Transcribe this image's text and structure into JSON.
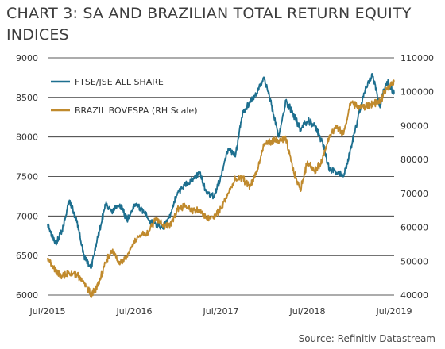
{
  "title_lines": [
    "CHART 3: SA AND BRAZILIAN TOTAL RETURN EQUITY",
    "INDICES"
  ],
  "source": "Source: Refinitiv Datastream",
  "chart_data": {
    "type": "line",
    "x_ticks": [
      "Jul/2015",
      "Jul/2016",
      "Jul/2017",
      "Jul/2018",
      "Jul/2019"
    ],
    "x_range": [
      "2015-07",
      "2019-07"
    ],
    "y_left": {
      "ticks": [
        6000,
        6500,
        7000,
        7500,
        8000,
        8500,
        9000
      ],
      "range": [
        6000,
        9000
      ]
    },
    "y_right": {
      "ticks": [
        40000,
        50000,
        60000,
        70000,
        80000,
        90000,
        100000,
        110000
      ],
      "range": [
        40000,
        110000
      ]
    },
    "grid": "horizontal",
    "legend_position": "top-left",
    "series": [
      {
        "name": "FTSE/JSE ALL SHARE",
        "axis": "left",
        "color": "#1d6f8f",
        "points": [
          [
            "2015-07",
            6900
          ],
          [
            "2015-08",
            6650
          ],
          [
            "2015-09",
            6800
          ],
          [
            "2015-10",
            7200
          ],
          [
            "2015-11",
            6950
          ],
          [
            "2015-12",
            6500
          ],
          [
            "2016-01",
            6350
          ],
          [
            "2016-02",
            6750
          ],
          [
            "2016-03",
            7150
          ],
          [
            "2016-04",
            7050
          ],
          [
            "2016-05",
            7150
          ],
          [
            "2016-06",
            6950
          ],
          [
            "2016-07",
            7150
          ],
          [
            "2016-08",
            7100
          ],
          [
            "2016-09",
            6950
          ],
          [
            "2016-10",
            6900
          ],
          [
            "2016-11",
            6850
          ],
          [
            "2016-12",
            7000
          ],
          [
            "2017-01",
            7300
          ],
          [
            "2017-02",
            7400
          ],
          [
            "2017-03",
            7450
          ],
          [
            "2017-04",
            7550
          ],
          [
            "2017-05",
            7300
          ],
          [
            "2017-06",
            7250
          ],
          [
            "2017-07",
            7500
          ],
          [
            "2017-08",
            7850
          ],
          [
            "2017-09",
            7750
          ],
          [
            "2017-10",
            8300
          ],
          [
            "2017-11",
            8450
          ],
          [
            "2017-12",
            8550
          ],
          [
            "2018-01",
            8750
          ],
          [
            "2018-02",
            8400
          ],
          [
            "2018-03",
            8000
          ],
          [
            "2018-04",
            8450
          ],
          [
            "2018-05",
            8300
          ],
          [
            "2018-06",
            8100
          ],
          [
            "2018-07",
            8200
          ],
          [
            "2018-08",
            8150
          ],
          [
            "2018-09",
            7950
          ],
          [
            "2018-10",
            7600
          ],
          [
            "2018-11",
            7550
          ],
          [
            "2018-12",
            7500
          ],
          [
            "2019-01",
            7850
          ],
          [
            "2019-02",
            8250
          ],
          [
            "2019-03",
            8600
          ],
          [
            "2019-04",
            8800
          ],
          [
            "2019-05",
            8400
          ],
          [
            "2019-06",
            8700
          ],
          [
            "2019-07",
            8550
          ]
        ]
      },
      {
        "name": "BRAZIL BOVESPA (RH Scale)",
        "axis": "right",
        "color": "#c08a2d",
        "points": [
          [
            "2015-07",
            51000
          ],
          [
            "2015-08",
            47500
          ],
          [
            "2015-09",
            45500
          ],
          [
            "2015-10",
            46500
          ],
          [
            "2015-11",
            46000
          ],
          [
            "2015-12",
            44000
          ],
          [
            "2016-01",
            40000
          ],
          [
            "2016-02",
            43000
          ],
          [
            "2016-03",
            49500
          ],
          [
            "2016-04",
            53500
          ],
          [
            "2016-05",
            49000
          ],
          [
            "2016-06",
            51500
          ],
          [
            "2016-07",
            56000
          ],
          [
            "2016-08",
            58000
          ],
          [
            "2016-09",
            58500
          ],
          [
            "2016-10",
            63000
          ],
          [
            "2016-11",
            60500
          ],
          [
            "2016-12",
            60500
          ],
          [
            "2017-01",
            65500
          ],
          [
            "2017-02",
            66500
          ],
          [
            "2017-03",
            65000
          ],
          [
            "2017-04",
            65000
          ],
          [
            "2017-05",
            62500
          ],
          [
            "2017-06",
            63000
          ],
          [
            "2017-07",
            65500
          ],
          [
            "2017-08",
            70000
          ],
          [
            "2017-09",
            74000
          ],
          [
            "2017-10",
            74500
          ],
          [
            "2017-11",
            72000
          ],
          [
            "2017-12",
            76500
          ],
          [
            "2018-01",
            84500
          ],
          [
            "2018-02",
            85500
          ],
          [
            "2018-03",
            85500
          ],
          [
            "2018-04",
            86000
          ],
          [
            "2018-05",
            77000
          ],
          [
            "2018-06",
            71000
          ],
          [
            "2018-07",
            79500
          ],
          [
            "2018-08",
            76500
          ],
          [
            "2018-09",
            79500
          ],
          [
            "2018-10",
            87000
          ],
          [
            "2018-11",
            89500
          ],
          [
            "2018-12",
            87500
          ],
          [
            "2019-01",
            97000
          ],
          [
            "2019-02",
            95500
          ],
          [
            "2019-03",
            95500
          ],
          [
            "2019-04",
            96500
          ],
          [
            "2019-05",
            97000
          ],
          [
            "2019-06",
            101000
          ],
          [
            "2019-07",
            103000
          ]
        ]
      }
    ]
  }
}
